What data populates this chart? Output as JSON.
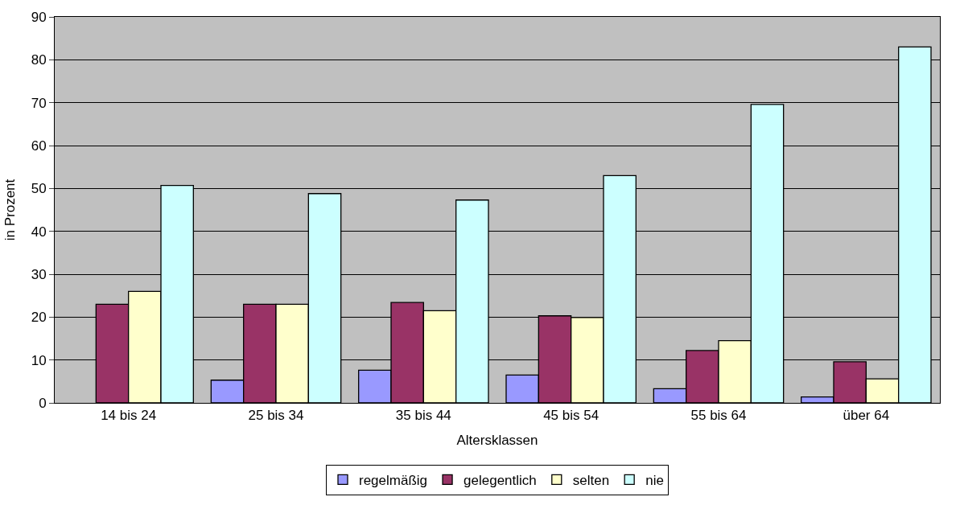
{
  "chart_data": {
    "type": "bar",
    "xlabel": "Altersklassen",
    "ylabel": "in Prozent",
    "categories": [
      "14 bis 24",
      "25 bis 34",
      "35 bis 44",
      "45 bis 54",
      "55 bis 64",
      "über 64"
    ],
    "series": [
      {
        "name": "regelmäßig",
        "color": "#9999ff",
        "values": [
          null,
          5.3,
          7.6,
          6.5,
          3.3,
          1.4
        ]
      },
      {
        "name": "gelegentlich",
        "color": "#993366",
        "values": [
          23,
          23,
          23.4,
          20.3,
          12.2,
          9.6
        ]
      },
      {
        "name": "selten",
        "color": "#ffffcc",
        "values": [
          26,
          23,
          21.5,
          19.9,
          14.5,
          5.6
        ]
      },
      {
        "name": "nie",
        "color": "#ccffff",
        "values": [
          50.7,
          48.8,
          47.3,
          53.0,
          69.6,
          83.0
        ]
      }
    ],
    "ylim": [
      0,
      90
    ],
    "yticks": [
      0,
      10,
      20,
      30,
      40,
      50,
      60,
      70,
      80,
      90
    ],
    "grid": "y",
    "legend": "bottom"
  }
}
